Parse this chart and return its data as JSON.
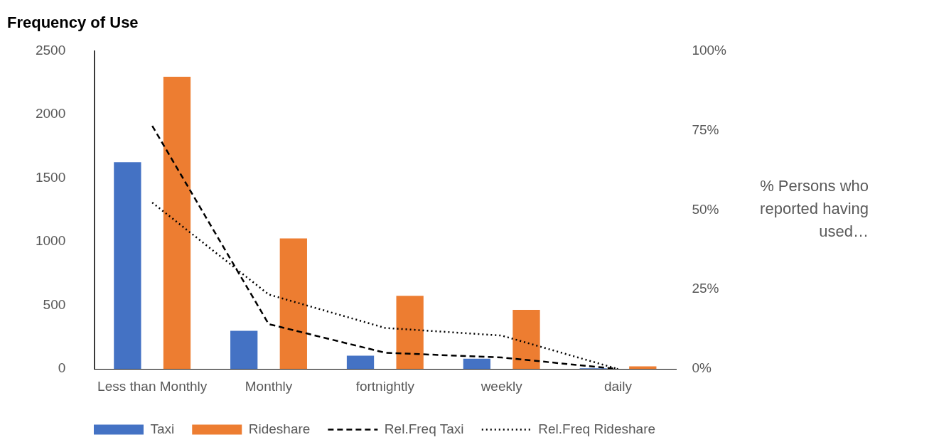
{
  "chart_data": {
    "type": "bar",
    "title": "Frequency of Use",
    "y2label": "% Persons who reported having used…",
    "categories": [
      "Less than Monthly",
      "Monthly",
      "fortnightly",
      "weekly",
      "daily"
    ],
    "series": [
      {
        "name": "Taxi",
        "color": "#4472c4",
        "values": [
          1625,
          300,
          105,
          80,
          5
        ]
      },
      {
        "name": "Rideshare",
        "color": "#ed7d31",
        "values": [
          2295,
          1025,
          575,
          465,
          20
        ]
      },
      {
        "name": "Rel.Freq Taxi",
        "type": "line",
        "axis": "y2",
        "color": "#000000",
        "line_style": "dashed",
        "values": [
          76.4,
          14.1,
          5.1,
          3.6,
          0
        ]
      },
      {
        "name": "Rel.Freq Rideshare",
        "type": "line",
        "axis": "y2",
        "color": "#000000",
        "line_style": "dotted",
        "values": [
          52.3,
          23.4,
          12.9,
          10.5,
          0
        ]
      }
    ],
    "ylim": [
      0,
      2500
    ],
    "yticks": [
      0,
      500,
      1000,
      1500,
      2000,
      2500
    ],
    "y2lim": [
      0,
      100
    ],
    "y2ticks": [
      {
        "value": 0,
        "label": "0%"
      },
      {
        "value": 25,
        "label": "25%"
      },
      {
        "value": 50,
        "label": "50%"
      },
      {
        "value": 75,
        "label": "75%"
      },
      {
        "value": 100,
        "label": "100%"
      }
    ],
    "grid": false,
    "legend": "bottom",
    "marker": "none"
  }
}
